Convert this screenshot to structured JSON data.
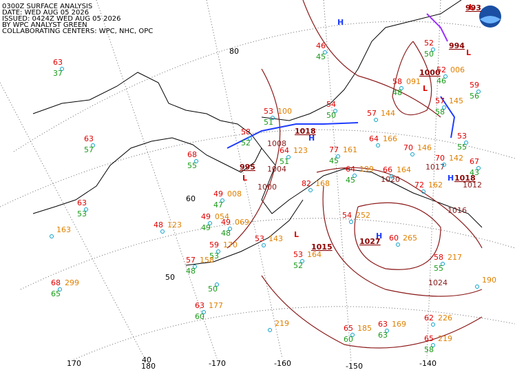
{
  "header": {
    "lines": [
      "0300Z SURFACE ANALYSIS",
      "DATE: WED AUG 05 2026",
      "ISSUED: 0424Z WED AUG 05 2026",
      "BY WPC ANALYST GREEN",
      "COLLABORATING CENTERS: WPC, NHC, OPC"
    ]
  },
  "latitude_labels": [
    "80",
    "60",
    "50",
    "40"
  ],
  "longitude_labels": [
    "170",
    "180",
    "-170",
    "-160",
    "-150",
    "-140"
  ],
  "centers": [
    {
      "symbol": "H"
    },
    {
      "symbol": "H",
      "value": "1018"
    },
    {
      "symbol": "L",
      "value": "995"
    },
    {
      "symbol": "L",
      "value": "1015"
    },
    {
      "symbol": "H",
      "value": "1027"
    },
    {
      "symbol": "H",
      "value": "1018"
    },
    {
      "symbol": "L",
      "value": "1000"
    },
    {
      "symbol": "L",
      "value": "994"
    },
    {
      "symbol": "L",
      "value": "993"
    }
  ],
  "isobar_labels": [
    "1024",
    "1008",
    "1004",
    "1000",
    "1020",
    "1016",
    "1017",
    "1012"
  ],
  "stations": [
    {
      "temp": 63,
      "dew": 37
    },
    {
      "temp": 63,
      "dew": 57
    },
    {
      "temp": 63,
      "dew": 53
    },
    {
      "pressure": "163"
    },
    {
      "temp": 68,
      "dew": 65,
      "pressure": "299"
    },
    {
      "temp": 68,
      "dew": 55
    },
    {
      "temp": 49,
      "dew": 47,
      "pressure": "008"
    },
    {
      "temp": 48,
      "pressure": "123"
    },
    {
      "temp": 49,
      "dew": 49,
      "pressure": "054"
    },
    {
      "temp": 49,
      "dew": 48,
      "pressure": "069"
    },
    {
      "temp": 59,
      "dew": 53,
      "pressure": "170"
    },
    {
      "temp": 57,
      "dew": 48,
      "pressure": "158"
    },
    {
      "dew": 50
    },
    {
      "temp": 63,
      "dew": 60,
      "pressure": "177"
    },
    {
      "pressure": "219"
    },
    {
      "temp": 53,
      "pressure": "143"
    },
    {
      "temp": 53,
      "dew": 52,
      "pressure": "164"
    },
    {
      "temp": 54,
      "pressure": "252"
    },
    {
      "temp": 60,
      "pressure": "265"
    },
    {
      "temp": 58,
      "dew": 55,
      "pressure": "217"
    },
    {
      "temp": 62,
      "pressure": "226"
    },
    {
      "temp": 65,
      "dew": 58,
      "pressure": "219"
    },
    {
      "temp": 63,
      "dew": 63,
      "pressure": "169"
    },
    {
      "temp": 65,
      "dew": 60,
      "pressure": "185"
    },
    {
      "pressure": "190"
    },
    {
      "temp": 72,
      "pressure": "162"
    },
    {
      "temp": 70,
      "pressure": "142"
    },
    {
      "temp": 70,
      "pressure": "146"
    },
    {
      "temp": 67,
      "dew": 43
    },
    {
      "temp": 53,
      "dew": 55
    },
    {
      "temp": 64,
      "dew": 45,
      "pressure": "199"
    },
    {
      "temp": 66,
      "pressure": "164"
    },
    {
      "temp": 77,
      "dew": 45,
      "pressure": "161"
    },
    {
      "temp": 64,
      "pressure": "166"
    },
    {
      "temp": 57,
      "pressure": "144"
    },
    {
      "temp": 53,
      "dew": 51,
      "pressure": "100"
    },
    {
      "temp": 58,
      "dew": 52
    },
    {
      "temp": 64,
      "dew": 51,
      "pressure": "123"
    },
    {
      "temp": 54,
      "dew": 50
    },
    {
      "temp": 46,
      "dew": 45
    },
    {
      "temp": 52,
      "dew": 46,
      "pressure": "006"
    },
    {
      "temp": 52,
      "dew": 50
    },
    {
      "temp": 59,
      "dew": 56
    },
    {
      "temp": 57,
      "dew": 58,
      "pressure": "145"
    },
    {
      "temp": 58,
      "dew": 48,
      "pressure": "091"
    },
    {
      "temp": 82,
      "pressure": "168"
    }
  ]
}
